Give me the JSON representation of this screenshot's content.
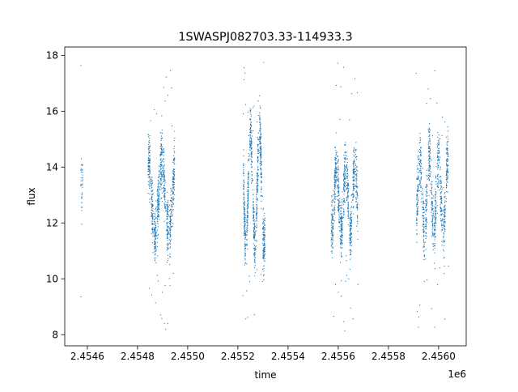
{
  "chart_data": {
    "type": "scatter",
    "title": "1SWASPJ082703.33-114933.3",
    "xlabel": "time",
    "ylabel": "flux",
    "x_offset_label": "1e6",
    "x_ticks": [
      2.4546,
      2.4548,
      2.455,
      2.4552,
      2.4554,
      2.4556,
      2.4558,
      2.456
    ],
    "x_tick_labels": [
      "2.4546",
      "2.4548",
      "2.4550",
      "2.4552",
      "2.4554",
      "2.4556",
      "2.4558",
      "2.4560"
    ],
    "y_ticks": [
      8,
      10,
      12,
      14,
      16,
      18
    ],
    "y_tick_labels": [
      "8",
      "10",
      "12",
      "14",
      "16",
      "18"
    ],
    "xlim": [
      2.45451,
      2.45611
    ],
    "ylim": [
      7.6,
      18.3
    ],
    "grid": false,
    "legend": "none",
    "point_color": "#1f77b4",
    "series": [
      {
        "seasons": [
          {
            "x_range": [
              2.454574,
              2.454582
            ],
            "center": 13.2,
            "amplitude": 0.5,
            "spread": 0.35
          },
          {
            "x_range": [
              2.45484,
              2.45495
            ],
            "center": 12.9,
            "amplitude": 1.3,
            "spread": 0.55
          },
          {
            "x_range": [
              2.45522,
              2.45531
            ],
            "center": 13.2,
            "amplitude": 2.0,
            "spread": 0.5
          },
          {
            "x_range": [
              2.45557,
              2.45568
            ],
            "center": 12.9,
            "amplitude": 1.2,
            "spread": 0.5
          },
          {
            "x_range": [
              2.45591,
              2.45604
            ],
            "center": 13.0,
            "amplitude": 1.3,
            "spread": 0.55
          }
        ],
        "outlier_range": [
          8.1,
          17.8
        ]
      }
    ]
  }
}
